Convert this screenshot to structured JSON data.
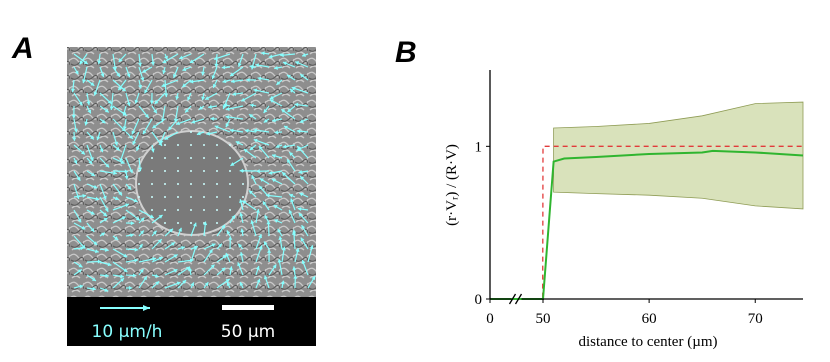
{
  "panel_a": {
    "label": "A",
    "speed_scale": "10 µm/h",
    "length_scale": "50 µm"
  },
  "chart_data": {
    "type": "line",
    "panel_label": "B",
    "x_label": "distance to center (µm)",
    "y_label": "(r·Vᵣ) / (R·V)",
    "xlim": [
      0,
      74.5
    ],
    "ylim": [
      0,
      1.5
    ],
    "xticks": [
      0,
      50,
      60,
      70
    ],
    "yticks": [
      0,
      1
    ],
    "x_break": true,
    "band": {
      "color": "#d9e2bb",
      "edge": "#8f9c55",
      "x": [
        51,
        55,
        60,
        65,
        70,
        74.5
      ],
      "lower": [
        0.7,
        0.69,
        0.68,
        0.66,
        0.61,
        0.59
      ],
      "upper": [
        1.12,
        1.13,
        1.15,
        1.2,
        1.28,
        1.29
      ]
    },
    "series": [
      {
        "color": "#e23b3b",
        "dash": true,
        "x": [
          0,
          49.7,
          50,
          74.5
        ],
        "values": [
          0,
          0,
          1,
          1
        ]
      },
      {
        "color": "#2fb52f",
        "dash": false,
        "x": [
          0,
          50,
          51,
          52,
          55,
          60,
          65,
          66,
          70,
          74.5
        ],
        "values": [
          0,
          0,
          0.9,
          0.92,
          0.93,
          0.95,
          0.96,
          0.97,
          0.96,
          0.94
        ]
      }
    ]
  }
}
